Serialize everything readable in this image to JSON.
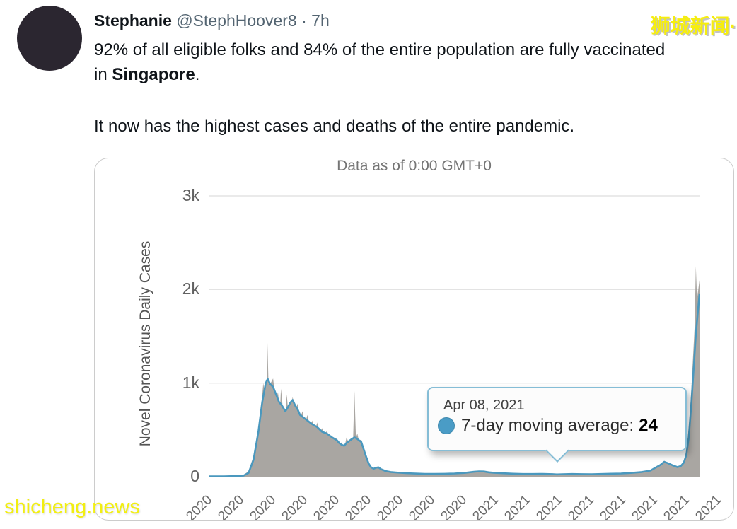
{
  "tweet": {
    "author": "Stephanie",
    "handle": "@StephHoover8",
    "separator": "·",
    "time": "7h",
    "text_before": "92% of all eligible folks and 84% of the entire population are fully vaccinated in ",
    "text_bold": "Singapore",
    "text_period": ".",
    "text_para2": "It now has the highest cases and deaths of the entire pandemic."
  },
  "watermarks": {
    "top_right": "狮城新闻·",
    "bottom_left": "shicheng.news"
  },
  "chart_data": {
    "type": "area",
    "title": "Data as of 0:00 GMT+0",
    "ylabel": "Novel Coronavirus Daily Cases",
    "xlabel": "",
    "ylim": [
      0,
      3000
    ],
    "grid": "horizontal",
    "legend_position": "none",
    "y_ticks": [
      {
        "label": "3k",
        "value": 3000
      },
      {
        "label": "2k",
        "value": 2000
      },
      {
        "label": "1k",
        "value": 1000
      },
      {
        "label": "0",
        "value": 0
      }
    ],
    "x_tick_labels": [
      "2020",
      "2020",
      "2020",
      "2020",
      "2020",
      "2020",
      "2020",
      "2020",
      "2020",
      "2021",
      "2021",
      "2021",
      "2021",
      "2021",
      "2021",
      "2021",
      "2021"
    ],
    "series": [
      {
        "name": "daily-cases",
        "render": "area",
        "color": "#a9a6a2",
        "fill": "#a9a6a2",
        "points": [
          [
            0,
            5
          ],
          [
            0.02,
            6
          ],
          [
            0.04,
            8
          ],
          [
            0.06,
            10
          ],
          [
            0.07,
            18
          ],
          [
            0.08,
            60
          ],
          [
            0.09,
            220
          ],
          [
            0.1,
            520
          ],
          [
            0.105,
            700
          ],
          [
            0.11,
            1000
          ],
          [
            0.115,
            820
          ],
          [
            0.118,
            950
          ],
          [
            0.1185,
            1430
          ],
          [
            0.121,
            900
          ],
          [
            0.125,
            1000
          ],
          [
            0.13,
            1050
          ],
          [
            0.135,
            820
          ],
          [
            0.14,
            900
          ],
          [
            0.144,
            700
          ],
          [
            0.146,
            940
          ],
          [
            0.15,
            720
          ],
          [
            0.155,
            650
          ],
          [
            0.158,
            880
          ],
          [
            0.162,
            600
          ],
          [
            0.166,
            750
          ],
          [
            0.17,
            850
          ],
          [
            0.175,
            700
          ],
          [
            0.18,
            780
          ],
          [
            0.185,
            620
          ],
          [
            0.19,
            700
          ],
          [
            0.195,
            560
          ],
          [
            0.2,
            660
          ],
          [
            0.205,
            540
          ],
          [
            0.21,
            600
          ],
          [
            0.215,
            480
          ],
          [
            0.22,
            580
          ],
          [
            0.225,
            450
          ],
          [
            0.23,
            520
          ],
          [
            0.235,
            420
          ],
          [
            0.24,
            500
          ],
          [
            0.245,
            380
          ],
          [
            0.25,
            450
          ],
          [
            0.255,
            350
          ],
          [
            0.26,
            420
          ],
          [
            0.265,
            320
          ],
          [
            0.27,
            370
          ],
          [
            0.275,
            300
          ],
          [
            0.28,
            420
          ],
          [
            0.285,
            350
          ],
          [
            0.29,
            400
          ],
          [
            0.293,
            340
          ],
          [
            0.296,
            915
          ],
          [
            0.299,
            420
          ],
          [
            0.302,
            460
          ],
          [
            0.305,
            380
          ],
          [
            0.31,
            400
          ],
          [
            0.315,
            300
          ],
          [
            0.32,
            200
          ],
          [
            0.325,
            120
          ],
          [
            0.33,
            80
          ],
          [
            0.335,
            70
          ],
          [
            0.34,
            90
          ],
          [
            0.345,
            110
          ],
          [
            0.35,
            70
          ],
          [
            0.36,
            50
          ],
          [
            0.37,
            45
          ],
          [
            0.38,
            40
          ],
          [
            0.4,
            35
          ],
          [
            0.42,
            30
          ],
          [
            0.44,
            28
          ],
          [
            0.46,
            30
          ],
          [
            0.48,
            32
          ],
          [
            0.5,
            35
          ],
          [
            0.52,
            40
          ],
          [
            0.54,
            55
          ],
          [
            0.55,
            60
          ],
          [
            0.56,
            58
          ],
          [
            0.57,
            48
          ],
          [
            0.58,
            42
          ],
          [
            0.6,
            35
          ],
          [
            0.62,
            32
          ],
          [
            0.64,
            28
          ],
          [
            0.66,
            30
          ],
          [
            0.68,
            32
          ],
          [
            0.7,
            35
          ],
          [
            0.709,
            28
          ],
          [
            0.72,
            30
          ],
          [
            0.74,
            32
          ],
          [
            0.76,
            28
          ],
          [
            0.78,
            26
          ],
          [
            0.8,
            30
          ],
          [
            0.82,
            34
          ],
          [
            0.84,
            36
          ],
          [
            0.86,
            42
          ],
          [
            0.88,
            50
          ],
          [
            0.9,
            70
          ],
          [
            0.91,
            100
          ],
          [
            0.92,
            135
          ],
          [
            0.928,
            170
          ],
          [
            0.935,
            150
          ],
          [
            0.945,
            125
          ],
          [
            0.955,
            105
          ],
          [
            0.962,
            125
          ],
          [
            0.968,
            165
          ],
          [
            0.973,
            280
          ],
          [
            0.978,
            520
          ],
          [
            0.982,
            800
          ],
          [
            0.986,
            1200
          ],
          [
            0.99,
            1600
          ],
          [
            0.9925,
            2250
          ],
          [
            0.995,
            1900
          ],
          [
            1,
            2100
          ]
        ]
      },
      {
        "name": "7-day-moving-average",
        "render": "line",
        "color": "#4a98be",
        "fill": "#a9a6a2",
        "points": [
          [
            0,
            3
          ],
          [
            0.03,
            4
          ],
          [
            0.05,
            6
          ],
          [
            0.07,
            12
          ],
          [
            0.08,
            40
          ],
          [
            0.09,
            180
          ],
          [
            0.1,
            480
          ],
          [
            0.108,
            800
          ],
          [
            0.115,
            1000
          ],
          [
            0.119,
            1045
          ],
          [
            0.124,
            990
          ],
          [
            0.13,
            960
          ],
          [
            0.136,
            880
          ],
          [
            0.142,
            800
          ],
          [
            0.148,
            760
          ],
          [
            0.155,
            700
          ],
          [
            0.16,
            740
          ],
          [
            0.165,
            790
          ],
          [
            0.17,
            820
          ],
          [
            0.175,
            760
          ],
          [
            0.18,
            720
          ],
          [
            0.185,
            660
          ],
          [
            0.19,
            640
          ],
          [
            0.2,
            600
          ],
          [
            0.21,
            560
          ],
          [
            0.22,
            530
          ],
          [
            0.23,
            480
          ],
          [
            0.24,
            460
          ],
          [
            0.25,
            420
          ],
          [
            0.26,
            390
          ],
          [
            0.265,
            360
          ],
          [
            0.27,
            340
          ],
          [
            0.275,
            330
          ],
          [
            0.28,
            360
          ],
          [
            0.285,
            380
          ],
          [
            0.29,
            400
          ],
          [
            0.296,
            420
          ],
          [
            0.3,
            410
          ],
          [
            0.305,
            390
          ],
          [
            0.31,
            370
          ],
          [
            0.315,
            290
          ],
          [
            0.32,
            210
          ],
          [
            0.325,
            140
          ],
          [
            0.33,
            100
          ],
          [
            0.335,
            85
          ],
          [
            0.34,
            95
          ],
          [
            0.345,
            100
          ],
          [
            0.35,
            80
          ],
          [
            0.36,
            60
          ],
          [
            0.37,
            50
          ],
          [
            0.38,
            45
          ],
          [
            0.4,
            38
          ],
          [
            0.42,
            33
          ],
          [
            0.44,
            30
          ],
          [
            0.46,
            30
          ],
          [
            0.48,
            31
          ],
          [
            0.5,
            34
          ],
          [
            0.52,
            40
          ],
          [
            0.54,
            52
          ],
          [
            0.55,
            57
          ],
          [
            0.56,
            55
          ],
          [
            0.57,
            47
          ],
          [
            0.58,
            42
          ],
          [
            0.6,
            36
          ],
          [
            0.62,
            32
          ],
          [
            0.64,
            29
          ],
          [
            0.66,
            29
          ],
          [
            0.68,
            30
          ],
          [
            0.7,
            27
          ],
          [
            0.709,
            24
          ],
          [
            0.72,
            26
          ],
          [
            0.74,
            29
          ],
          [
            0.76,
            27
          ],
          [
            0.78,
            26
          ],
          [
            0.8,
            29
          ],
          [
            0.82,
            32
          ],
          [
            0.84,
            34
          ],
          [
            0.86,
            40
          ],
          [
            0.88,
            48
          ],
          [
            0.9,
            65
          ],
          [
            0.91,
            95
          ],
          [
            0.92,
            125
          ],
          [
            0.928,
            158
          ],
          [
            0.935,
            145
          ],
          [
            0.945,
            122
          ],
          [
            0.955,
            102
          ],
          [
            0.962,
            115
          ],
          [
            0.968,
            150
          ],
          [
            0.973,
            230
          ],
          [
            0.978,
            420
          ],
          [
            0.983,
            750
          ],
          [
            0.988,
            1150
          ],
          [
            0.993,
            1550
          ],
          [
            1,
            1950
          ]
        ]
      }
    ],
    "tooltip": {
      "date": "Apr 08, 2021",
      "series_label": "7-day moving average:",
      "value": "24",
      "marker_color": "#4a9cc6",
      "anchor_x_frac": 0.709
    }
  }
}
